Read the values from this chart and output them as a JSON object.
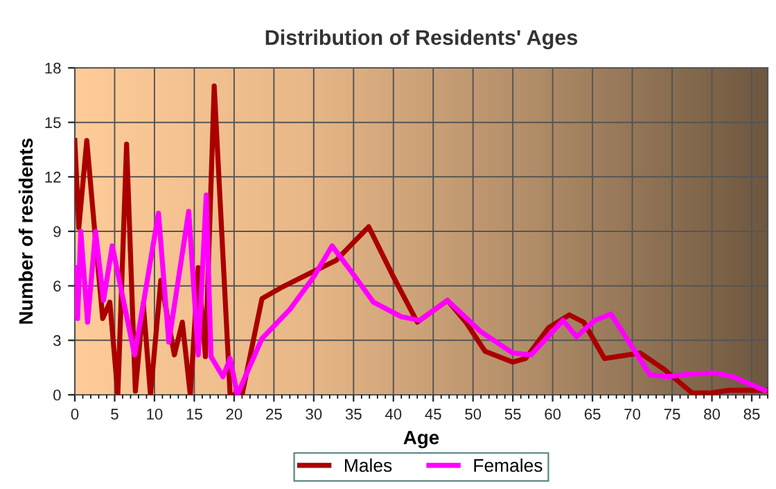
{
  "chart_data": {
    "type": "line",
    "title": "Distribution of Residents' Ages",
    "xlabel": "Age",
    "ylabel": "Number of residents",
    "xlim": [
      0,
      87
    ],
    "xticks": [
      0,
      5,
      10,
      15,
      20,
      25,
      30,
      35,
      40,
      45,
      50,
      55,
      60,
      65,
      70,
      75,
      80,
      85
    ],
    "ylim": [
      0,
      18
    ],
    "yticks": [
      0,
      3,
      6,
      9,
      12,
      15,
      18
    ],
    "grid": true,
    "legend": "bottom",
    "line_style": "solid",
    "marker": "none",
    "series": [
      {
        "name": "Males",
        "color": "#aa0000",
        "x": [
          0,
          0.5,
          1.5,
          2.5,
          3.5,
          4.4,
          5.4,
          6.5,
          7.6,
          8.6,
          9.5,
          10.8,
          12.5,
          13.5,
          14.5,
          15.5,
          16.4,
          17.5,
          19.5,
          21,
          23.5,
          25.9,
          30,
          32.8,
          36.9,
          40,
          43,
          46.8,
          49.1,
          51.5,
          55,
          56.6,
          59.5,
          62.1,
          63.9,
          66.5,
          71,
          74,
          77.5,
          79.9,
          82.2,
          86.9
        ],
        "values": [
          14,
          9.2,
          14,
          9,
          4.2,
          5.1,
          0,
          13.8,
          0.2,
          5,
          0,
          6.3,
          2.2,
          4,
          0,
          7,
          2.1,
          17,
          0,
          0,
          5.3,
          5.9,
          6.8,
          7.4,
          9.25,
          6.5,
          4,
          5.2,
          4,
          2.4,
          1.8,
          2,
          3.7,
          4.4,
          4,
          2,
          2.3,
          1.4,
          0.1,
          0.1,
          0.25,
          0.25
        ]
      },
      {
        "name": "Females",
        "color": "#ff00ff",
        "x": [
          0,
          0.35,
          0.75,
          1.6,
          2.6,
          3.6,
          4.7,
          7.5,
          8.6,
          10.5,
          11.8,
          14.3,
          15.5,
          16.5,
          17.1,
          18.6,
          19.5,
          20.4,
          23.5,
          27,
          30,
          32.3,
          35.2,
          37.5,
          41,
          43.3,
          46.8,
          50.9,
          55,
          57.3,
          61.3,
          63,
          65.3,
          67.3,
          69.9,
          72.2,
          74.5,
          77.4,
          80.3,
          82.6,
          86.6
        ],
        "values": [
          7,
          4.2,
          9,
          4,
          9,
          5.2,
          8.2,
          2.2,
          5,
          10,
          2.9,
          10.1,
          2.2,
          11,
          2.1,
          1,
          2,
          0,
          3.1,
          4.7,
          6.5,
          8.2,
          6.5,
          5.1,
          4.3,
          4.1,
          5.2,
          3.5,
          2.3,
          2.2,
          4.1,
          3.2,
          4.1,
          4.45,
          2.7,
          1.1,
          1,
          1.15,
          1.2,
          1,
          0.25
        ]
      }
    ]
  }
}
